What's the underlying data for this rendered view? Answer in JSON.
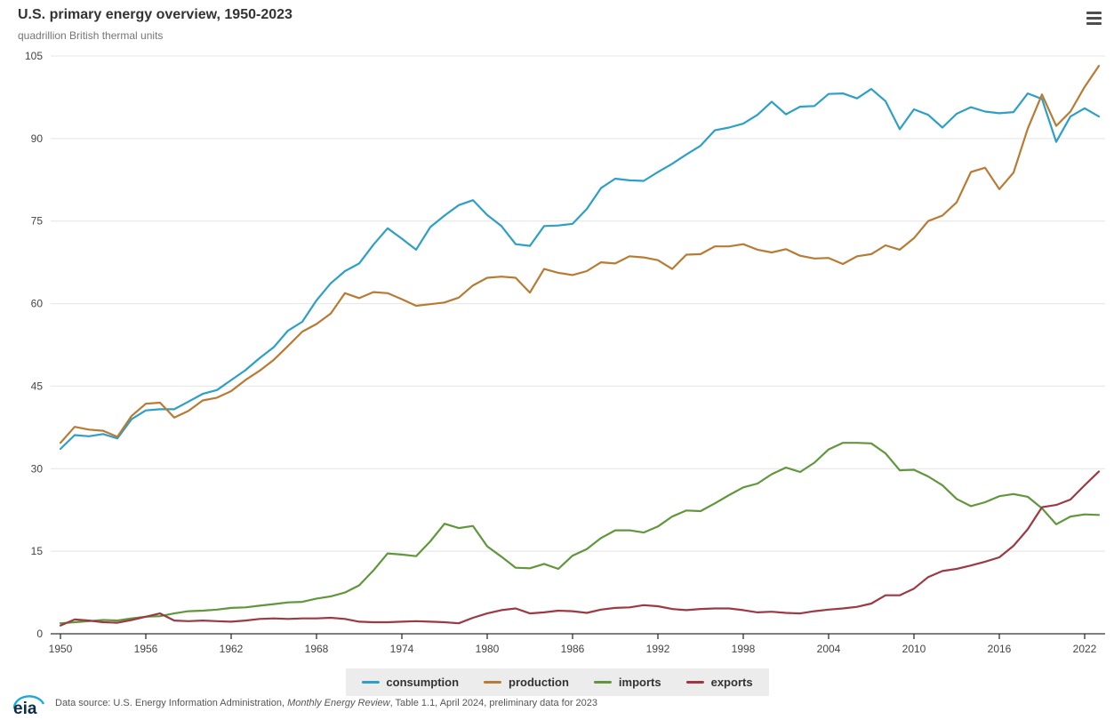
{
  "header": {
    "title": "U.S. primary energy overview, 1950-2023",
    "subtitle": "quadrillion British thermal units"
  },
  "footer": {
    "logo_text": "eia",
    "prefix": "Data source: U.S. Energy Information Administration, ",
    "publication": "Monthly Energy Review",
    "suffix": ", Table 1.1, April 2024, preliminary data for 2023"
  },
  "chart_data": {
    "type": "line",
    "title": "U.S. primary energy overview, 1950-2023",
    "ylabel": "quadrillion British thermal units",
    "ylim": [
      0,
      105
    ],
    "yticks": [
      0,
      15,
      30,
      45,
      60,
      75,
      90,
      105
    ],
    "xticks": [
      1950,
      1956,
      1962,
      1968,
      1974,
      1980,
      1986,
      1992,
      1998,
      2004,
      2010,
      2016,
      2022
    ],
    "grid": "horizontal",
    "legend_position": "bottom",
    "years": [
      1950,
      1951,
      1952,
      1953,
      1954,
      1955,
      1956,
      1957,
      1958,
      1959,
      1960,
      1961,
      1962,
      1963,
      1964,
      1965,
      1966,
      1967,
      1968,
      1969,
      1970,
      1971,
      1972,
      1973,
      1974,
      1975,
      1976,
      1977,
      1978,
      1979,
      1980,
      1981,
      1982,
      1983,
      1984,
      1985,
      1986,
      1987,
      1988,
      1989,
      1990,
      1991,
      1992,
      1993,
      1994,
      1995,
      1996,
      1997,
      1998,
      1999,
      2000,
      2001,
      2002,
      2003,
      2004,
      2005,
      2006,
      2007,
      2008,
      2009,
      2010,
      2011,
      2012,
      2013,
      2014,
      2015,
      2016,
      2017,
      2018,
      2019,
      2020,
      2021,
      2022,
      2023
    ],
    "series": [
      {
        "name": "consumption",
        "color": "#2E9FC7",
        "values": [
          33.6,
          36.1,
          35.9,
          36.3,
          35.5,
          39.0,
          40.6,
          40.8,
          40.8,
          42.2,
          43.6,
          44.3,
          46.1,
          47.9,
          50.1,
          52.1,
          55.1,
          56.7,
          60.6,
          63.7,
          65.9,
          67.3,
          70.7,
          73.7,
          71.8,
          69.8,
          73.9,
          76.0,
          77.9,
          78.8,
          76.1,
          74.1,
          70.8,
          70.5,
          74.1,
          74.2,
          74.5,
          77.2,
          81.0,
          82.7,
          82.4,
          82.3,
          83.9,
          85.4,
          87.1,
          88.7,
          91.5,
          92.0,
          92.7,
          94.3,
          96.7,
          94.4,
          95.8,
          95.9,
          98.1,
          98.2,
          97.3,
          99.0,
          96.8,
          91.7,
          95.3,
          94.3,
          92.0,
          94.5,
          95.7,
          94.9,
          94.6,
          94.8,
          98.2,
          97.2,
          89.4,
          94.0,
          95.5,
          94.0
        ]
      },
      {
        "name": "production",
        "color": "#B97A33",
        "values": [
          34.7,
          37.6,
          37.1,
          36.9,
          35.8,
          39.6,
          41.8,
          42.0,
          39.3,
          40.5,
          42.4,
          42.9,
          44.1,
          46.1,
          47.8,
          49.8,
          52.3,
          54.9,
          56.3,
          58.2,
          61.9,
          61.0,
          62.1,
          61.9,
          60.8,
          59.6,
          59.9,
          60.2,
          61.1,
          63.3,
          64.7,
          64.9,
          64.7,
          62.0,
          66.3,
          65.6,
          65.2,
          65.9,
          67.5,
          67.3,
          68.6,
          68.4,
          67.9,
          66.3,
          68.9,
          69.0,
          70.4,
          70.4,
          70.8,
          69.8,
          69.3,
          69.9,
          68.7,
          68.2,
          68.3,
          67.2,
          68.6,
          69.0,
          70.6,
          69.8,
          71.9,
          75.0,
          76.0,
          78.4,
          83.9,
          84.7,
          80.8,
          83.8,
          91.8,
          98.0,
          92.3,
          94.9,
          99.4,
          103.2
        ]
      },
      {
        "name": "imports",
        "color": "#60973C",
        "values": [
          1.9,
          2.1,
          2.3,
          2.5,
          2.4,
          2.8,
          3.1,
          3.2,
          3.7,
          4.1,
          4.2,
          4.4,
          4.7,
          4.8,
          5.1,
          5.4,
          5.7,
          5.8,
          6.4,
          6.8,
          7.5,
          8.8,
          11.5,
          14.6,
          14.4,
          14.1,
          16.8,
          20.0,
          19.2,
          19.6,
          15.9,
          14.0,
          12.0,
          11.9,
          12.7,
          11.8,
          14.2,
          15.4,
          17.4,
          18.8,
          18.8,
          18.4,
          19.5,
          21.3,
          22.4,
          22.3,
          23.7,
          25.2,
          26.6,
          27.3,
          29.0,
          30.2,
          29.4,
          31.1,
          33.5,
          34.7,
          34.7,
          34.6,
          32.8,
          29.7,
          29.8,
          28.6,
          27.0,
          24.5,
          23.2,
          23.9,
          25.0,
          25.4,
          24.9,
          22.8,
          19.9,
          21.3,
          21.7,
          21.6
        ]
      },
      {
        "name": "exports",
        "color": "#9B3A44",
        "values": [
          1.5,
          2.6,
          2.4,
          2.1,
          2.0,
          2.5,
          3.1,
          3.7,
          2.4,
          2.3,
          2.4,
          2.3,
          2.2,
          2.4,
          2.7,
          2.8,
          2.7,
          2.8,
          2.8,
          2.9,
          2.7,
          2.2,
          2.1,
          2.1,
          2.2,
          2.3,
          2.2,
          2.1,
          1.9,
          2.9,
          3.7,
          4.3,
          4.6,
          3.7,
          3.9,
          4.2,
          4.1,
          3.8,
          4.4,
          4.7,
          4.8,
          5.2,
          5.0,
          4.5,
          4.3,
          4.5,
          4.6,
          4.6,
          4.3,
          3.9,
          4.0,
          3.8,
          3.7,
          4.1,
          4.4,
          4.6,
          4.9,
          5.5,
          7.0,
          7.0,
          8.2,
          10.3,
          11.4,
          11.8,
          12.4,
          13.1,
          13.9,
          16.0,
          19.0,
          23.0,
          23.4,
          24.4,
          27.0,
          29.5
        ]
      }
    ]
  }
}
